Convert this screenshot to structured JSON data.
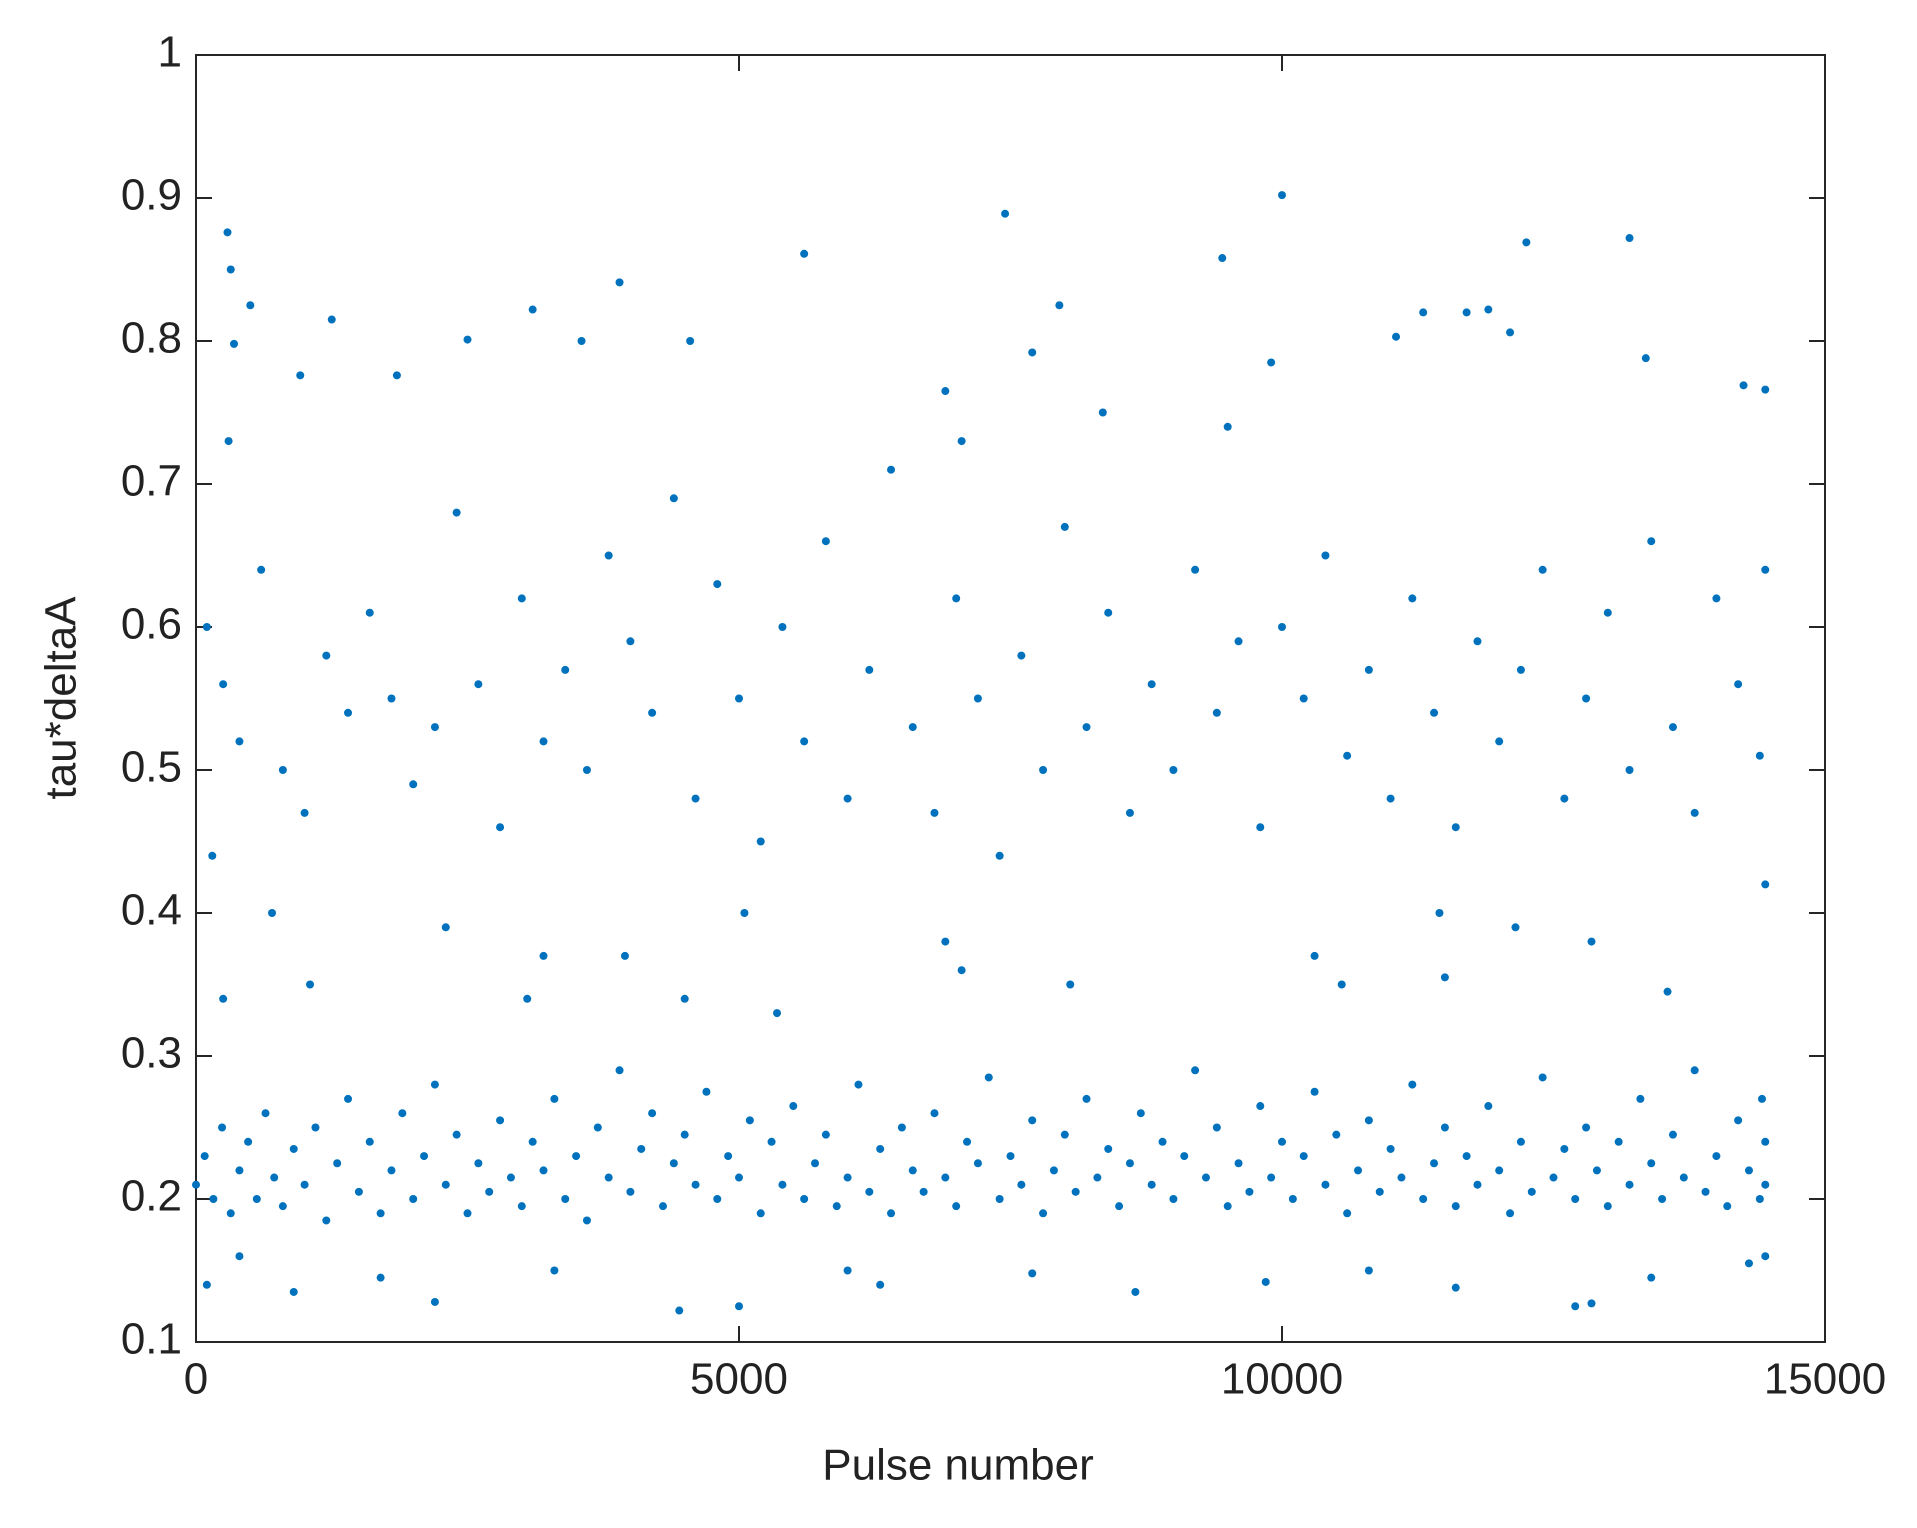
{
  "chart_data": {
    "type": "scatter",
    "x_label": "Pulse number",
    "y_label": "tau*deltaA",
    "color": "#0072bd",
    "grid": false,
    "xlim": [
      0,
      15000
    ],
    "xticks": [
      0,
      5000,
      10000,
      15000
    ],
    "ylim": [
      0.1,
      1
    ],
    "yticks": [
      0.1,
      0.2,
      0.3,
      0.4,
      0.5,
      0.6,
      0.7,
      0.8,
      0.9,
      1
    ],
    "x": [
      10000,
      7450,
      290,
      13200,
      12250,
      5600,
      9450,
      320,
      3900,
      7950,
      3100,
      11300,
      11700,
      11900,
      500,
      1250,
      4550,
      2500,
      350,
      7700,
      9900,
      13350,
      14450,
      14250,
      12100,
      11050,
      6900,
      1850,
      960,
      3550,
      100,
      250,
      400,
      600,
      800,
      1000,
      1200,
      1400,
      1600,
      1800,
      2000,
      2200,
      2400,
      2600,
      2800,
      3000,
      3200,
      3400,
      3600,
      3800,
      4000,
      4200,
      4400,
      4600,
      4800,
      5000,
      5200,
      5400,
      5600,
      5800,
      6000,
      6200,
      6400,
      6600,
      6800,
      7000,
      7200,
      7400,
      7600,
      7800,
      8000,
      8200,
      8400,
      8600,
      8800,
      9000,
      9200,
      9400,
      9600,
      9800,
      10000,
      10200,
      10400,
      10600,
      10800,
      11000,
      11200,
      11400,
      11600,
      11800,
      12000,
      12200,
      12400,
      12600,
      12800,
      13000,
      13200,
      13400,
      13600,
      13800,
      14000,
      14200,
      14400,
      14450,
      150,
      700,
      2300,
      3200,
      3950,
      5050,
      6900,
      7050,
      9500,
      10300,
      11450,
      12150,
      12850,
      14450,
      8350,
      300,
      250,
      1050,
      3050,
      4500,
      5350,
      7050,
      8050,
      10550,
      11500,
      13550,
      0,
      80,
      160,
      240,
      320,
      400,
      480,
      560,
      640,
      720,
      800,
      900,
      1000,
      1100,
      1200,
      1300,
      1400,
      1500,
      1600,
      1700,
      1800,
      1900,
      2000,
      2100,
      2200,
      2300,
      2400,
      2500,
      2600,
      2700,
      2800,
      2900,
      3000,
      3100,
      3200,
      3300,
      3400,
      3500,
      3600,
      3700,
      3800,
      3900,
      4000,
      4100,
      4200,
      4300,
      4400,
      4500,
      4600,
      4700,
      4800,
      4900,
      5000,
      5100,
      5200,
      5300,
      5400,
      5500,
      5600,
      5700,
      5800,
      5900,
      6000,
      6100,
      6200,
      6300,
      6400,
      6500,
      6600,
      6700,
      6800,
      6900,
      7000,
      7100,
      7200,
      7300,
      7400,
      7500,
      7600,
      7700,
      7800,
      7900,
      8000,
      8100,
      8200,
      8300,
      8400,
      8500,
      8600,
      8700,
      8800,
      8900,
      9000,
      9100,
      9200,
      9300,
      9400,
      9500,
      9600,
      9700,
      9800,
      9900,
      10000,
      10100,
      10200,
      10300,
      10400,
      10500,
      10600,
      10700,
      10800,
      10900,
      11000,
      11100,
      11200,
      11300,
      11400,
      11500,
      11600,
      11700,
      11800,
      11900,
      12000,
      12100,
      12200,
      12300,
      12400,
      12500,
      12600,
      12700,
      12800,
      12900,
      13000,
      13100,
      13200,
      13300,
      13400,
      13500,
      13600,
      13700,
      13800,
      13900,
      14000,
      14100,
      14200,
      14300,
      14400,
      14450,
      14450,
      14420,
      4450,
      5000,
      12700,
      12850,
      2200,
      100,
      900,
      1700,
      3300,
      6300,
      7700,
      8650,
      9850,
      10800,
      11600,
      13400,
      14300,
      14450,
      6000,
      400
    ],
    "values": [
      0.902,
      0.889,
      0.876,
      0.872,
      0.869,
      0.861,
      0.858,
      0.85,
      0.841,
      0.825,
      0.822,
      0.82,
      0.82,
      0.822,
      0.825,
      0.815,
      0.8,
      0.801,
      0.798,
      0.792,
      0.785,
      0.788,
      0.766,
      0.769,
      0.806,
      0.803,
      0.765,
      0.776,
      0.776,
      0.8,
      0.6,
      0.56,
      0.52,
      0.64,
      0.5,
      0.47,
      0.58,
      0.54,
      0.61,
      0.55,
      0.49,
      0.53,
      0.68,
      0.56,
      0.46,
      0.62,
      0.52,
      0.57,
      0.5,
      0.65,
      0.59,
      0.54,
      0.69,
      0.48,
      0.63,
      0.55,
      0.45,
      0.6,
      0.52,
      0.66,
      0.48,
      0.57,
      0.71,
      0.53,
      0.47,
      0.62,
      0.55,
      0.44,
      0.58,
      0.5,
      0.67,
      0.53,
      0.61,
      0.47,
      0.56,
      0.5,
      0.64,
      0.54,
      0.59,
      0.46,
      0.6,
      0.55,
      0.65,
      0.51,
      0.57,
      0.48,
      0.62,
      0.54,
      0.46,
      0.59,
      0.52,
      0.57,
      0.64,
      0.48,
      0.55,
      0.61,
      0.5,
      0.66,
      0.53,
      0.47,
      0.62,
      0.56,
      0.51,
      0.64,
      0.44,
      0.4,
      0.39,
      0.37,
      0.37,
      0.4,
      0.38,
      0.73,
      0.74,
      0.37,
      0.4,
      0.39,
      0.38,
      0.42,
      0.75,
      0.73,
      0.34,
      0.35,
      0.34,
      0.34,
      0.33,
      0.36,
      0.35,
      0.35,
      0.355,
      0.345,
      0.21,
      0.23,
      0.2,
      0.25,
      0.19,
      0.22,
      0.24,
      0.2,
      0.26,
      0.215,
      0.195,
      0.235,
      0.21,
      0.25,
      0.185,
      0.225,
      0.27,
      0.205,
      0.24,
      0.19,
      0.22,
      0.26,
      0.2,
      0.23,
      0.28,
      0.21,
      0.245,
      0.19,
      0.225,
      0.205,
      0.255,
      0.215,
      0.195,
      0.24,
      0.22,
      0.27,
      0.2,
      0.23,
      0.185,
      0.25,
      0.215,
      0.29,
      0.205,
      0.235,
      0.26,
      0.195,
      0.225,
      0.245,
      0.21,
      0.275,
      0.2,
      0.23,
      0.215,
      0.255,
      0.19,
      0.24,
      0.21,
      0.265,
      0.2,
      0.225,
      0.245,
      0.195,
      0.215,
      0.28,
      0.205,
      0.235,
      0.19,
      0.25,
      0.22,
      0.205,
      0.26,
      0.215,
      0.195,
      0.24,
      0.225,
      0.285,
      0.2,
      0.23,
      0.21,
      0.255,
      0.19,
      0.22,
      0.245,
      0.205,
      0.27,
      0.215,
      0.235,
      0.195,
      0.225,
      0.26,
      0.21,
      0.24,
      0.2,
      0.23,
      0.29,
      0.215,
      0.25,
      0.195,
      0.225,
      0.205,
      0.265,
      0.215,
      0.24,
      0.2,
      0.23,
      0.275,
      0.21,
      0.245,
      0.19,
      0.22,
      0.255,
      0.205,
      0.235,
      0.215,
      0.28,
      0.2,
      0.225,
      0.25,
      0.195,
      0.23,
      0.21,
      0.265,
      0.22,
      0.19,
      0.24,
      0.205,
      0.285,
      0.215,
      0.235,
      0.2,
      0.25,
      0.22,
      0.195,
      0.24,
      0.21,
      0.27,
      0.225,
      0.2,
      0.245,
      0.215,
      0.29,
      0.205,
      0.23,
      0.195,
      0.255,
      0.22,
      0.2,
      0.24,
      0.21,
      0.27,
      0.122,
      0.125,
      0.125,
      0.127,
      0.128,
      0.14,
      0.135,
      0.145,
      0.15,
      0.14,
      0.148,
      0.135,
      0.142,
      0.15,
      0.138,
      0.145,
      0.155,
      0.16,
      0.15,
      0.16
    ]
  }
}
